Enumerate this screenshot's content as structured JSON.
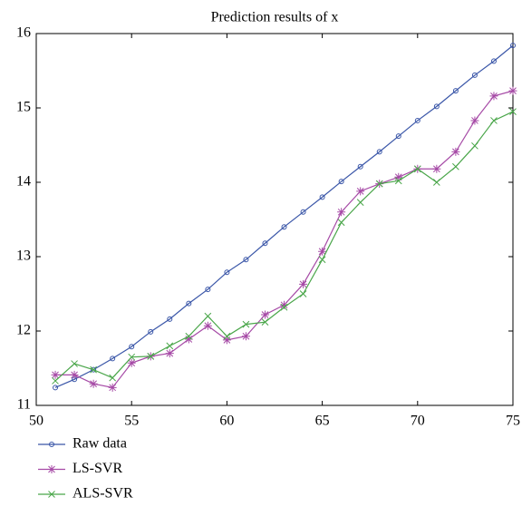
{
  "chart_data": {
    "type": "line",
    "title": "Prediction results of x",
    "x": [
      51,
      52,
      53,
      54,
      55,
      56,
      57,
      58,
      59,
      60,
      61,
      62,
      63,
      64,
      65,
      66,
      67,
      68,
      69,
      70,
      71,
      72,
      73,
      74,
      75
    ],
    "series": [
      {
        "name": "Raw data",
        "color": "#3a56a8",
        "marker": "o",
        "values": [
          11.24,
          11.35,
          11.48,
          11.63,
          11.79,
          11.99,
          12.16,
          12.37,
          12.56,
          12.79,
          12.96,
          13.18,
          13.4,
          13.6,
          13.8,
          14.01,
          14.21,
          14.41,
          14.62,
          14.83,
          15.02,
          15.23,
          15.44,
          15.63,
          15.84
        ]
      },
      {
        "name": "LS-SVR",
        "color": "#a64aa6",
        "marker": "*",
        "values": [
          11.41,
          11.41,
          11.29,
          11.24,
          11.57,
          11.66,
          11.7,
          11.89,
          12.07,
          11.88,
          11.93,
          12.22,
          12.35,
          12.63,
          13.07,
          13.6,
          13.88,
          13.98,
          14.07,
          14.18,
          14.18,
          14.41,
          14.83,
          15.16,
          15.23
        ]
      },
      {
        "name": "ALS-SVR",
        "color": "#4aa64a",
        "marker": "x",
        "values": [
          11.33,
          11.56,
          11.48,
          11.37,
          11.65,
          11.66,
          11.8,
          11.93,
          12.2,
          11.93,
          12.09,
          12.12,
          12.32,
          12.5,
          12.96,
          13.46,
          13.73,
          13.98,
          14.02,
          14.18,
          14.0,
          14.21,
          14.49,
          14.83,
          14.95
        ]
      }
    ],
    "xlim": [
      50,
      75
    ],
    "xticks": [
      50,
      55,
      60,
      65,
      70,
      75
    ],
    "ylim": [
      11,
      16
    ],
    "yticks": [
      11,
      12,
      13,
      14,
      15,
      16
    ],
    "grid": false,
    "legend": "below-left"
  }
}
